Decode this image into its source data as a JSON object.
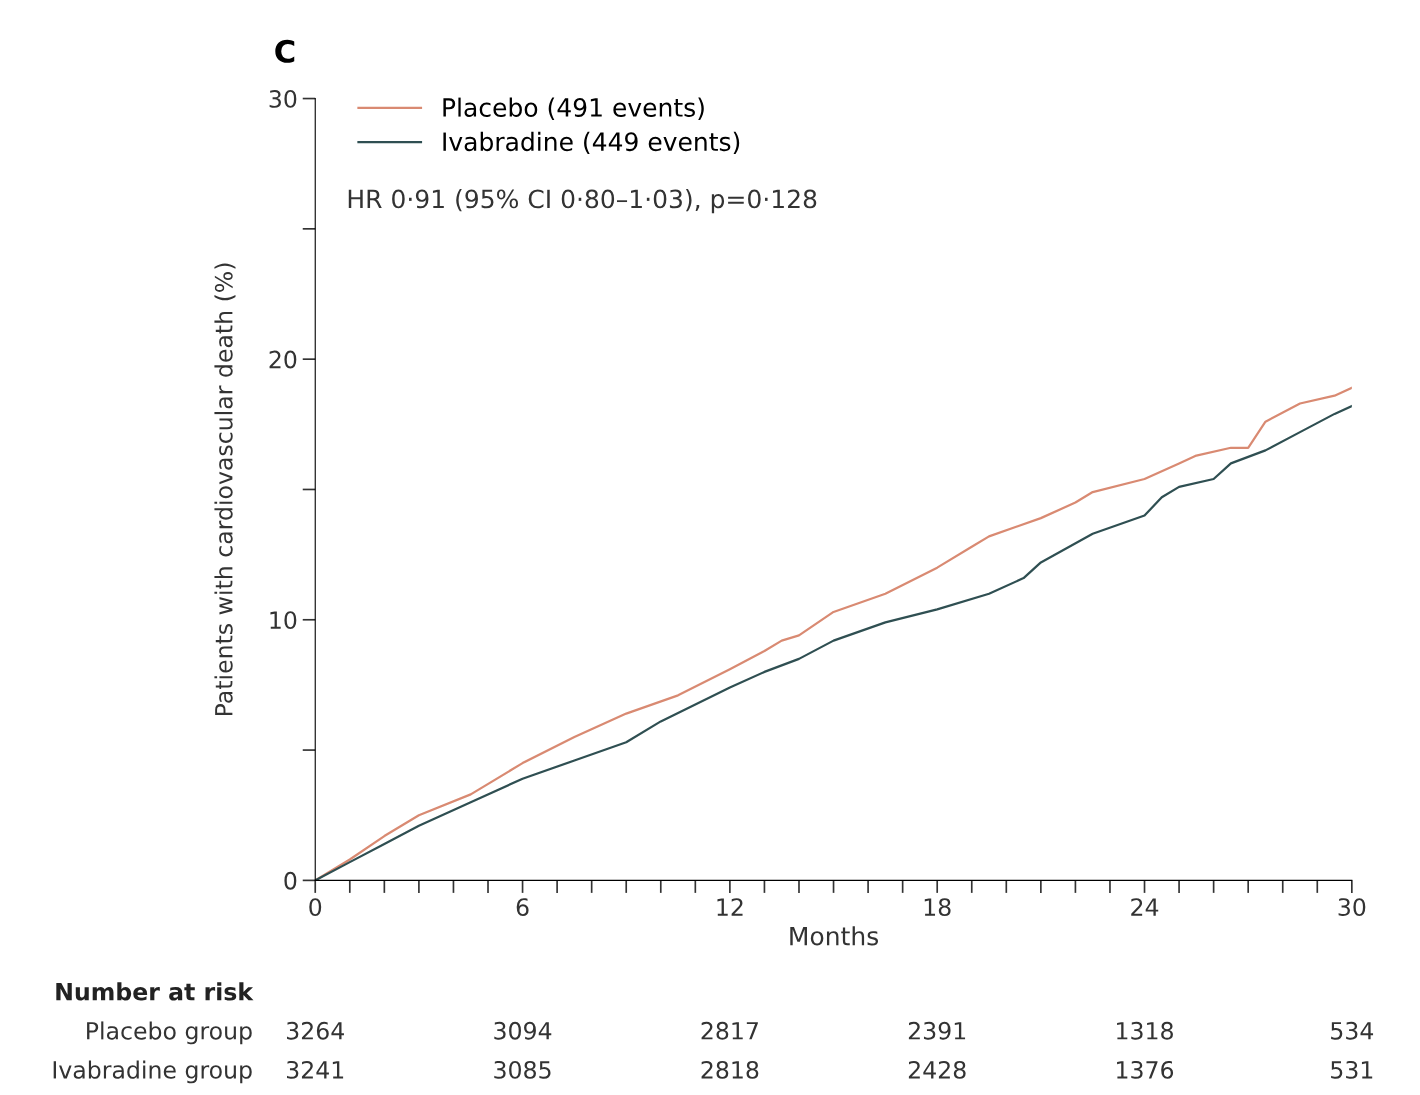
{
  "chart_data": {
    "type": "line",
    "title": "C",
    "xlabel": "Months",
    "ylabel": "Patients with cardiovascular death (%)",
    "xlim": [
      0,
      30
    ],
    "ylim": [
      0,
      30
    ],
    "xticks": [
      0,
      {
        "value": 1,
        "label": null
      },
      {
        "value": 2,
        "label": null
      },
      {
        "value": 3,
        "label": null
      },
      {
        "value": 4,
        "label": null
      },
      {
        "value": 5,
        "label": null
      },
      6,
      {
        "value": 7,
        "label": null
      },
      {
        "value": 8,
        "label": null
      },
      {
        "value": 9,
        "label": null
      },
      {
        "value": 10,
        "label": null
      },
      {
        "value": 11,
        "label": null
      },
      12,
      {
        "value": 13,
        "label": null
      },
      {
        "value": 14,
        "label": null
      },
      {
        "value": 15,
        "label": null
      },
      {
        "value": 16,
        "label": null
      },
      {
        "value": 17,
        "label": null
      },
      18,
      {
        "value": 19,
        "label": null
      },
      {
        "value": 20,
        "label": null
      },
      {
        "value": 21,
        "label": null
      },
      {
        "value": 22,
        "label": null
      },
      {
        "value": 23,
        "label": null
      },
      24,
      {
        "value": 25,
        "label": null
      },
      {
        "value": 26,
        "label": null
      },
      {
        "value": 27,
        "label": null
      },
      {
        "value": 28,
        "label": null
      },
      {
        "value": 29,
        "label": null
      },
      30
    ],
    "yticks": [
      0,
      {
        "value": 5,
        "label": null
      },
      10,
      {
        "value": 15,
        "label": null
      },
      20,
      {
        "value": 25,
        "label": null
      },
      30
    ],
    "grid": false,
    "legend": "top left",
    "line_style": "solid",
    "marker": "none",
    "series": [
      {
        "name": "Placebo (491 events)",
        "color": "#d98a72",
        "x": [
          0,
          1,
          2,
          3,
          4.5,
          6,
          7.5,
          9,
          10.5,
          12,
          13,
          13.5,
          14,
          15,
          16.5,
          18,
          19,
          19.5,
          21,
          22,
          22.5,
          24,
          25,
          25.5,
          26.5,
          27,
          27.5,
          28.5,
          29.5,
          30
        ],
        "values": [
          0,
          0.8,
          1.7,
          2.5,
          3.3,
          4.5,
          5.5,
          6.4,
          7.1,
          8.1,
          8.8,
          9.2,
          9.4,
          10.3,
          11.0,
          12.0,
          12.8,
          13.2,
          13.9,
          14.5,
          14.9,
          15.4,
          16.0,
          16.3,
          16.6,
          16.6,
          17.6,
          18.3,
          18.6,
          18.9
        ]
      },
      {
        "name": "Ivabradine (449 events)",
        "color": "#2f4f52",
        "x": [
          0,
          1,
          2,
          3,
          4.5,
          6,
          7.5,
          9,
          10,
          12,
          13,
          14,
          15,
          16.5,
          18,
          19.5,
          20.5,
          21,
          22.5,
          24,
          24.5,
          25,
          26,
          26.5,
          27.5,
          28.5,
          29.5,
          30
        ],
        "values": [
          0,
          0.7,
          1.4,
          2.1,
          3.0,
          3.9,
          4.6,
          5.3,
          6.1,
          7.4,
          8.0,
          8.5,
          9.2,
          9.9,
          10.4,
          11.0,
          11.6,
          12.2,
          13.3,
          14.0,
          14.7,
          15.1,
          15.4,
          16.0,
          16.5,
          17.2,
          17.9,
          18.2
        ]
      }
    ],
    "annotations": [
      "HR 0·91 (95% CI 0·80–1·03), p=0·128",
      "Number at risk",
      "Placebo group",
      "3264",
      "3094",
      "2817",
      "2391",
      "1318",
      "534",
      "Ivabradine group",
      "3241",
      "3085",
      "2818",
      "2428",
      "1376",
      "531"
    ]
  }
}
